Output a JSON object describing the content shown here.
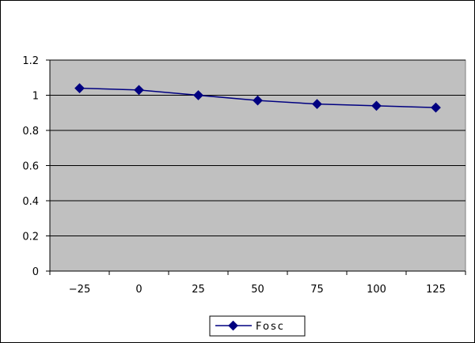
{
  "chart_data": {
    "type": "line",
    "x": [
      -25,
      0,
      25,
      50,
      75,
      100,
      125
    ],
    "categories": [
      "-25",
      "0",
      "25",
      "50",
      "75",
      "100",
      "125"
    ],
    "series": [
      {
        "name": "Fosc",
        "values": [
          1.04,
          1.03,
          1.0,
          0.97,
          0.95,
          0.94,
          0.93
        ],
        "color": "#000080"
      }
    ],
    "y_ticks": [
      "0",
      "0.2",
      "0.4",
      "0.6",
      "0.8",
      "1",
      "1.2"
    ],
    "ylim": [
      0,
      1.2
    ],
    "grid": true,
    "plot_background": "#c0c0c0",
    "legend": {
      "position": "bottom",
      "entries": [
        "Fosc"
      ]
    },
    "title": "",
    "xlabel": "",
    "ylabel": ""
  }
}
